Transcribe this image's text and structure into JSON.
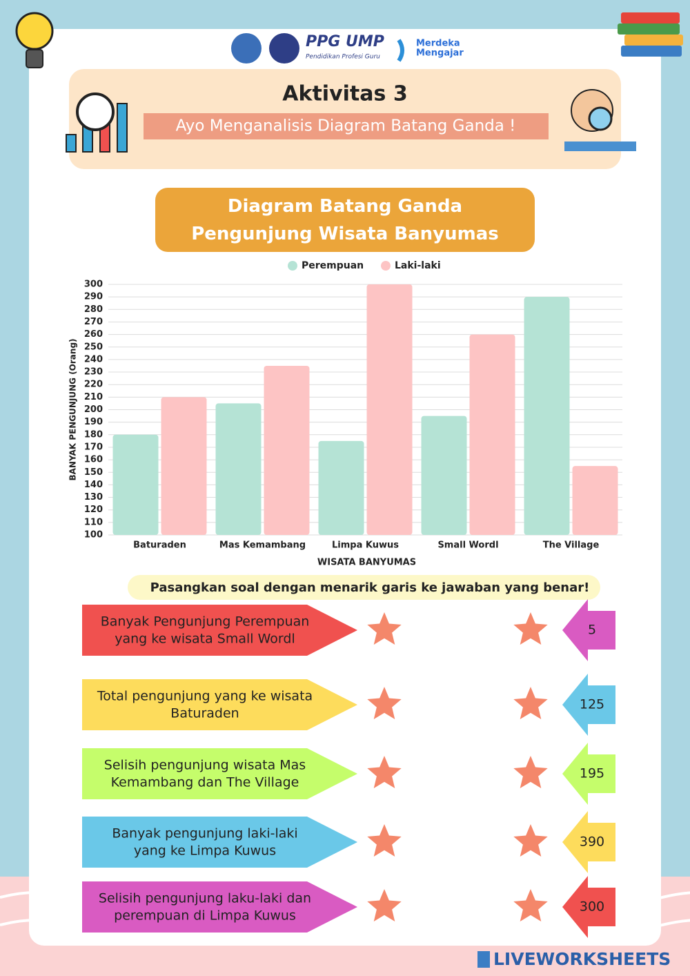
{
  "header": {
    "logo_title": "PPG UMP",
    "logo_subtitle": "Pendidikan Profesi Guru",
    "logo_merdeka": [
      "Merdeka",
      "Mengajar"
    ],
    "title": "Aktivitas 3",
    "subtitle": "Ayo Menganalisis Diagram Batang Ganda !"
  },
  "chart_data": {
    "type": "bar",
    "title": "Diagram Batang Ganda Pengunjung Wisata Banyumas",
    "categories": [
      "Baturaden",
      "Mas Kemambang",
      "Limpa Kuwus",
      "Small Wordl",
      "The Village"
    ],
    "series": [
      {
        "name": "Perempuan",
        "color": "#b5e3d5",
        "values": [
          180,
          205,
          175,
          195,
          290
        ]
      },
      {
        "name": "Laki-laki",
        "color": "#fdc4c4",
        "values": [
          210,
          235,
          300,
          260,
          155
        ]
      }
    ],
    "ylim": [
      100,
      300
    ],
    "yticks": [
      100,
      110,
      120,
      130,
      140,
      150,
      160,
      170,
      180,
      190,
      200,
      210,
      220,
      230,
      240,
      250,
      260,
      270,
      280,
      290,
      300
    ],
    "grid": true,
    "ylabel": "BANYAK PENGUNJUNG (Orang)",
    "xlabel": "WISATA BANYUMAS",
    "legend": "top"
  },
  "exercise": {
    "instruction": "Pasangkan soal dengan menarik garis ke jawaban yang benar!",
    "questions": [
      {
        "lines": [
          "Banyak Pengunjung Perempuan",
          "yang ke wisata Small Wordl"
        ],
        "color": "#f0514f"
      },
      {
        "lines": [
          "Total pengunjung yang ke wisata",
          "Baturaden"
        ],
        "color": "#fddc5c"
      },
      {
        "lines": [
          "Selisih pengunjung wisata Mas",
          "Kemambang dan The Village"
        ],
        "color": "#c5fd6b"
      },
      {
        "lines": [
          "Banyak pengunjung laki-laki",
          "yang ke Limpa Kuwus"
        ],
        "color": "#6ac8e8"
      },
      {
        "lines": [
          "Selisih pengunjung laku-laki dan",
          "perempuan  di Limpa Kuwus"
        ],
        "color": "#d95bc2"
      }
    ],
    "answers": [
      {
        "text": "5",
        "color": "#d95bc2"
      },
      {
        "text": "125",
        "color": "#6ac8e8"
      },
      {
        "text": "195",
        "color": "#c5fd6b"
      },
      {
        "text": "390",
        "color": "#fddc5c"
      },
      {
        "text": "300",
        "color": "#f0514f"
      }
    ]
  },
  "footer": {
    "brand": "LIVEWORKSHEETS"
  }
}
